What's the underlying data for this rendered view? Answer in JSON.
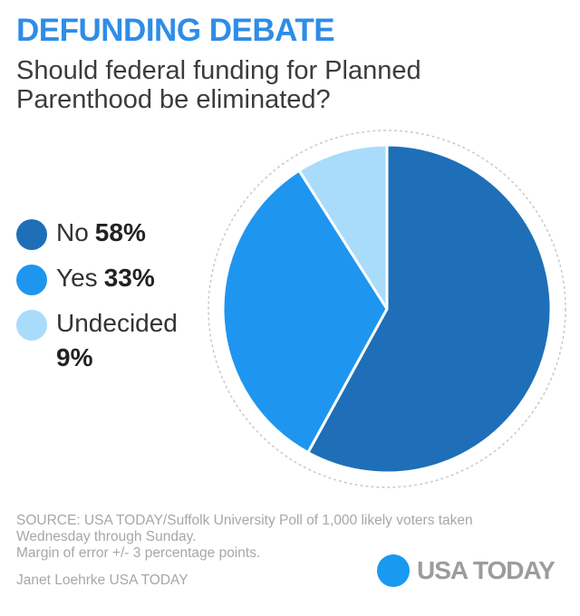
{
  "header": {
    "title": "DEFUNDING DEBATE",
    "subtitle": "Should federal funding for Planned Parenthood be eliminated?"
  },
  "legend": [
    {
      "label": "No",
      "pct": "58%"
    },
    {
      "label": "Yes",
      "pct": "33%"
    },
    {
      "label": "Undecided",
      "pct": "9%"
    }
  ],
  "chart_data": {
    "type": "pie",
    "title": "DEFUNDING DEBATE",
    "subtitle": "Should federal funding for Planned Parenthood be eliminated?",
    "categories": [
      "No",
      "Yes",
      "Undecided"
    ],
    "values": [
      58,
      33,
      9
    ],
    "colors": [
      "#1e6fb8",
      "#1e96ef",
      "#a9dcfa"
    ],
    "legend_position": "left"
  },
  "footer": {
    "source": "SOURCE:  USA TODAY/Suffolk University Poll of 1,000 likely voters taken Wednesday through Sunday.",
    "margin": "Margin of error +/- 3 percentage points.",
    "credit": "Janet Loehrke USA TODAY"
  },
  "logo": {
    "text": "USA TODAY",
    "color": "#1a99f0"
  }
}
